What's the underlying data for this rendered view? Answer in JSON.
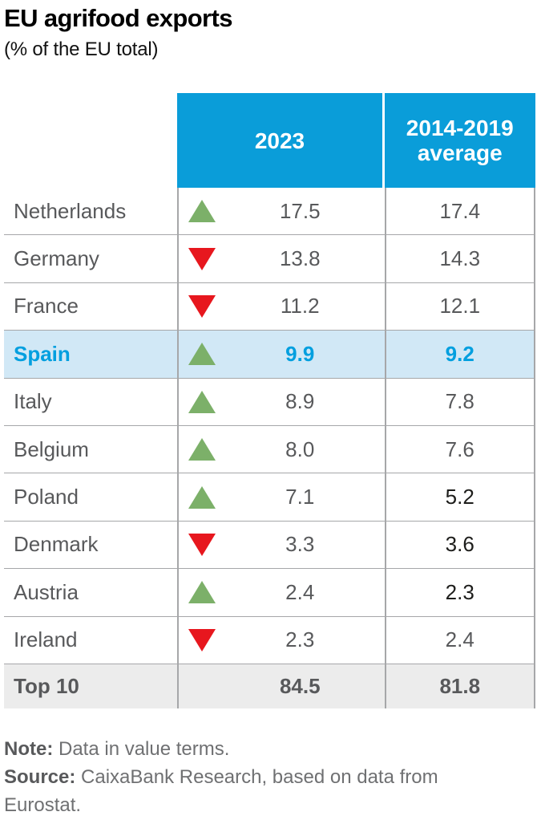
{
  "header": {
    "title": "EU agrifood exports",
    "subtitle": "(% of the EU total)"
  },
  "table": {
    "columns": [
      "2023",
      "2014-2019 average"
    ],
    "rows": [
      {
        "country": "Netherlands",
        "trend": "up",
        "value_2023": "17.5",
        "value_avg": "17.4"
      },
      {
        "country": "Germany",
        "trend": "down",
        "value_2023": "13.8",
        "value_avg": "14.3"
      },
      {
        "country": "France",
        "trend": "down",
        "value_2023": "11.2",
        "value_avg": "12.1"
      },
      {
        "country": "Spain",
        "trend": "up",
        "value_2023": "9.9",
        "value_avg": "9.2",
        "highlighted": true
      },
      {
        "country": "Italy",
        "trend": "up",
        "value_2023": "8.9",
        "value_avg": "7.8"
      },
      {
        "country": "Belgium",
        "trend": "up",
        "value_2023": "8.0",
        "value_avg": "7.6"
      },
      {
        "country": "Poland",
        "trend": "up",
        "value_2023": "7.1",
        "value_avg": "5.2"
      },
      {
        "country": "Denmark",
        "trend": "down",
        "value_2023": "3.3",
        "value_avg": "3.6"
      },
      {
        "country": "Austria",
        "trend": "up",
        "value_2023": "2.4",
        "value_avg": "2.3"
      },
      {
        "country": "Ireland",
        "trend": "down",
        "value_2023": "2.3",
        "value_avg": "2.4"
      }
    ],
    "footer": {
      "label": "Top 10",
      "value_2023": "84.5",
      "value_avg": "81.8"
    }
  },
  "notes": {
    "note_label": "Note:",
    "note_text": " Data in value terms.",
    "source_label": "Source:",
    "source_text": " CaixaBank Research, based on data from Eurostat."
  },
  "colors": {
    "header_blue": "#0a9dd9",
    "highlight_bg": "#d1e8f6",
    "highlight_text": "#009fdf",
    "up_green": "#7cb069",
    "down_red": "#e7171e",
    "text_gray": "#58595b",
    "border_gray": "#a6a7a9",
    "total_row_bg": "#ececec",
    "note_gray": "#6f7072"
  },
  "chart_data": {
    "type": "table",
    "title": "EU agrifood exports",
    "subtitle": "(% of the EU total)",
    "categories": [
      "Netherlands",
      "Germany",
      "France",
      "Spain",
      "Italy",
      "Belgium",
      "Poland",
      "Denmark",
      "Austria",
      "Ireland",
      "Top 10"
    ],
    "series": [
      {
        "name": "2023",
        "values": [
          17.5,
          13.8,
          11.2,
          9.9,
          8.9,
          8.0,
          7.1,
          3.3,
          2.4,
          2.3,
          84.5
        ]
      },
      {
        "name": "2014-2019 average",
        "values": [
          17.4,
          14.3,
          12.1,
          9.2,
          7.8,
          7.6,
          5.2,
          3.6,
          2.3,
          2.4,
          81.8
        ]
      }
    ],
    "trend_vs_average": [
      "up",
      "down",
      "down",
      "up",
      "up",
      "up",
      "up",
      "down",
      "up",
      "down"
    ],
    "highlighted_row": "Spain"
  }
}
